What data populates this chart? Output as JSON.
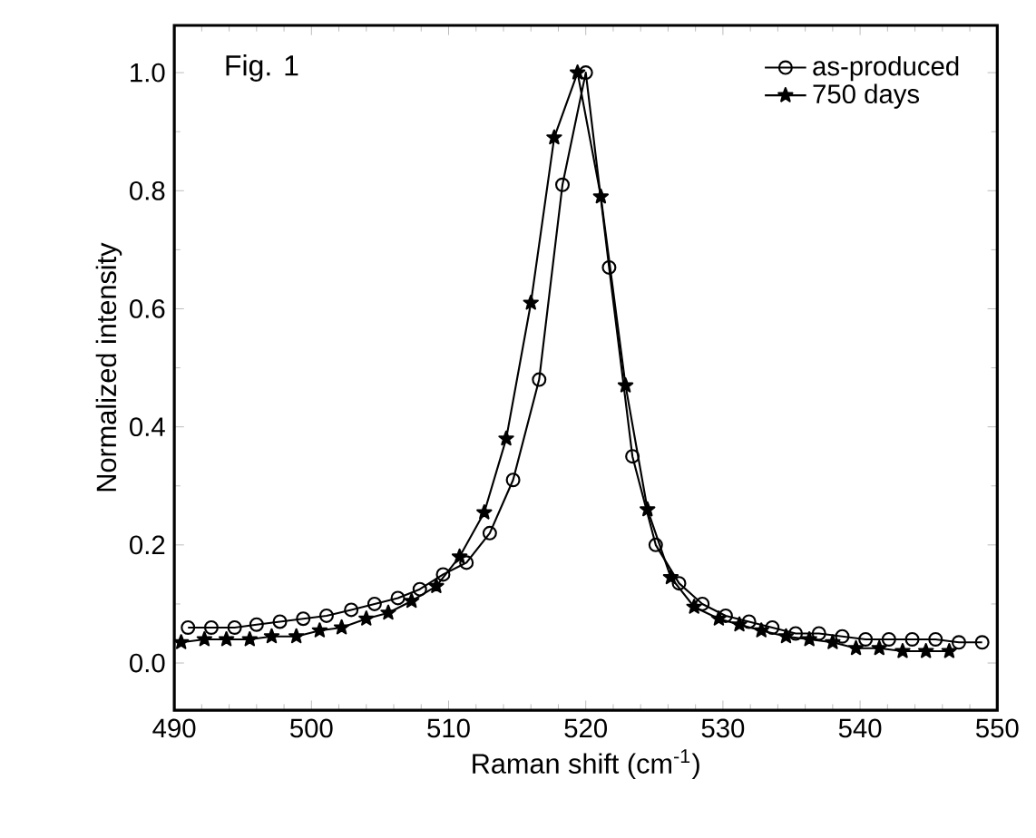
{
  "chart_data": {
    "type": "line",
    "xlabel": "Raman shift (cm$^{-1}$)",
    "ylabel": "Normalized intensity",
    "annotations": [
      "Fig. 1"
    ],
    "xlim": [
      490,
      550
    ],
    "xticks": [
      490,
      500,
      510,
      520,
      530,
      540,
      550
    ],
    "ylim": [
      -0.08,
      1.08
    ],
    "yticks": [
      {
        "value": 0,
        "label": "0.0"
      },
      0.2,
      0.4,
      0.6,
      0.8,
      {
        "value": 1,
        "label": "1.0"
      }
    ],
    "legend": "top right",
    "grid": false,
    "series": [
      {
        "name": "as-produced",
        "color": "#000000",
        "marker": "circle",
        "x": [
          491.0,
          492.7,
          494.4,
          496.0,
          497.7,
          499.4,
          501.1,
          502.9,
          504.6,
          506.3,
          507.9,
          509.6,
          511.3,
          513.0,
          514.7,
          516.6,
          518.3,
          520.0,
          521.7,
          523.4,
          525.1,
          526.8,
          528.5,
          530.2,
          531.9,
          533.6,
          535.3,
          537.0,
          538.7,
          540.4,
          542.1,
          543.8,
          545.5,
          547.2,
          548.9
        ],
        "values": [
          0.06,
          0.06,
          0.06,
          0.065,
          0.07,
          0.075,
          0.08,
          0.09,
          0.1,
          0.11,
          0.125,
          0.15,
          0.17,
          0.22,
          0.31,
          0.48,
          0.81,
          1.0,
          0.67,
          0.35,
          0.2,
          0.135,
          0.1,
          0.08,
          0.07,
          0.06,
          0.05,
          0.05,
          0.045,
          0.04,
          0.04,
          0.04,
          0.04,
          0.035,
          0.035
        ]
      },
      {
        "name": "750 days",
        "color": "#000000",
        "marker": "star",
        "x": [
          490.5,
          492.2,
          493.8,
          495.5,
          497.1,
          498.9,
          500.6,
          502.2,
          504.0,
          505.6,
          507.3,
          509.1,
          510.8,
          512.6,
          514.2,
          516.0,
          517.7,
          519.4,
          521.1,
          522.9,
          524.5,
          526.2,
          527.9,
          529.7,
          531.2,
          532.8,
          534.6,
          536.3,
          538.0,
          539.7,
          541.4,
          543.1,
          544.8,
          546.5
        ],
        "values": [
          0.035,
          0.04,
          0.04,
          0.04,
          0.045,
          0.045,
          0.055,
          0.06,
          0.075,
          0.085,
          0.105,
          0.13,
          0.18,
          0.255,
          0.38,
          0.61,
          0.89,
          1.0,
          0.79,
          0.47,
          0.26,
          0.145,
          0.095,
          0.075,
          0.065,
          0.055,
          0.045,
          0.04,
          0.035,
          0.025,
          0.025,
          0.02,
          0.02,
          0.02
        ]
      }
    ]
  }
}
